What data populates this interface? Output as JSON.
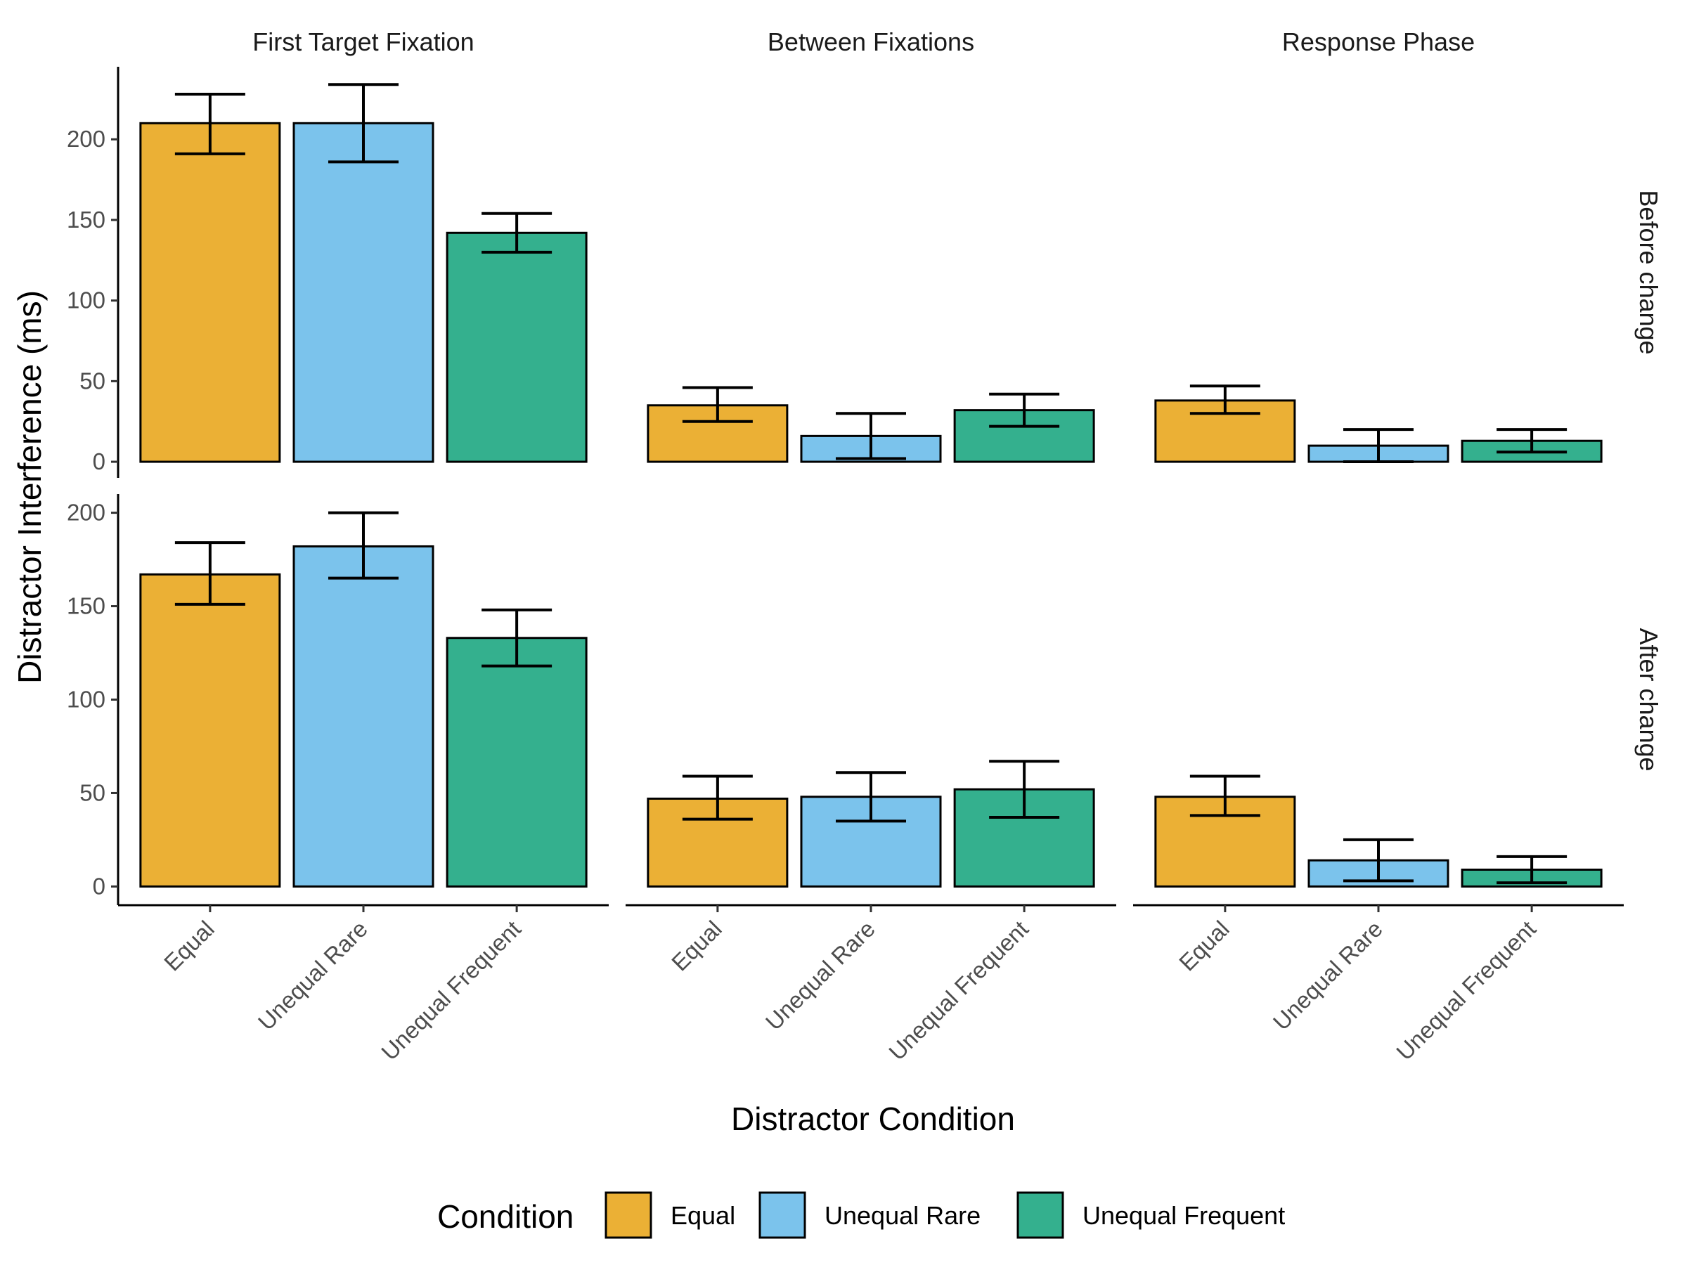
{
  "chart_data": {
    "type": "bar",
    "facets": {
      "columns": [
        "First Target Fixation",
        "Between Fixations",
        "Response Phase"
      ],
      "rows": [
        "Before change",
        "After change"
      ]
    },
    "categories": [
      "Equal",
      "Unequal Rare",
      "Unequal Frequent"
    ],
    "colors": {
      "Equal": "#ebb035",
      "Unequal Rare": "#7bc3ec",
      "Unequal Frequent": "#34b08e"
    },
    "panels": [
      {
        "row": "Before change",
        "column": "First Target Fixation",
        "values": [
          210,
          210,
          142
        ],
        "error_low": [
          191,
          186,
          130
        ],
        "error_high": [
          228,
          234,
          154
        ]
      },
      {
        "row": "Before change",
        "column": "Between Fixations",
        "values": [
          35,
          16,
          32
        ],
        "error_low": [
          25,
          2,
          22
        ],
        "error_high": [
          46,
          30,
          42
        ]
      },
      {
        "row": "Before change",
        "column": "Response Phase",
        "values": [
          38,
          10,
          13
        ],
        "error_low": [
          30,
          0,
          6
        ],
        "error_high": [
          47,
          20,
          20
        ]
      },
      {
        "row": "After change",
        "column": "First Target Fixation",
        "values": [
          167,
          182,
          133
        ],
        "error_low": [
          151,
          165,
          118
        ],
        "error_high": [
          184,
          200,
          148
        ]
      },
      {
        "row": "After change",
        "column": "Between Fixations",
        "values": [
          47,
          48,
          52
        ],
        "error_low": [
          36,
          35,
          37
        ],
        "error_high": [
          59,
          61,
          67
        ]
      },
      {
        "row": "After change",
        "column": "Response Phase",
        "values": [
          48,
          14,
          9
        ],
        "error_low": [
          38,
          3,
          2
        ],
        "error_high": [
          59,
          25,
          16
        ]
      }
    ],
    "y_axes": [
      {
        "row": "Before change",
        "ylim": [
          -10,
          245
        ],
        "ticks": [
          0,
          50,
          100,
          150,
          200
        ]
      },
      {
        "row": "After change",
        "ylim": [
          -10,
          210
        ],
        "ticks": [
          0,
          50,
          100,
          150,
          200
        ]
      }
    ],
    "xlabel": "Distractor Condition",
    "ylabel": "Distractor Interference (ms)",
    "legend": {
      "title": "Condition",
      "placement": "bottom",
      "entries": [
        "Equal",
        "Unequal Rare",
        "Unequal Frequent"
      ]
    },
    "grid": false
  }
}
